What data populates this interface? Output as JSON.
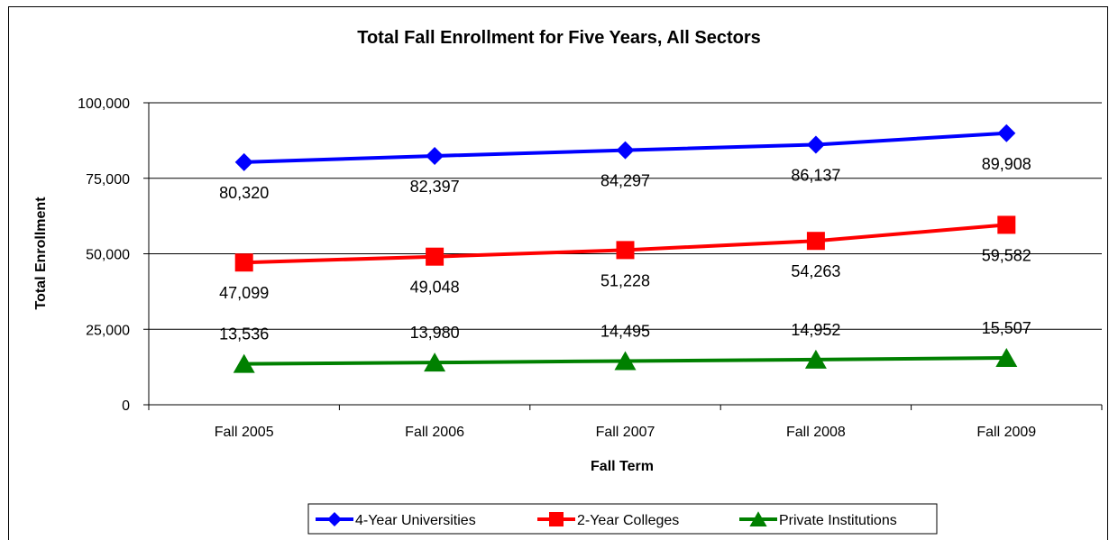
{
  "chart_data": {
    "type": "line",
    "title": "Total Fall Enrollment for Five Years, All Sectors",
    "xlabel": "Fall Term",
    "ylabel": "Total Enrollment",
    "categories": [
      "Fall 2005",
      "Fall 2006",
      "Fall 2007",
      "Fall 2008",
      "Fall 2009"
    ],
    "ylim": [
      0,
      100000
    ],
    "yticks": [
      0,
      25000,
      50000,
      75000,
      100000
    ],
    "ytick_labels": [
      "0",
      "25,000",
      "50,000",
      "75,000",
      "100,000"
    ],
    "grid": true,
    "legend_position": "bottom",
    "series": [
      {
        "name": "4-Year Universities",
        "values": [
          80320,
          82397,
          84297,
          86137,
          89908
        ],
        "labels": [
          "80,320",
          "82,397",
          "84,297",
          "86,137",
          "89,908"
        ],
        "color": "#0000FF",
        "marker": "diamond",
        "label_position": "below"
      },
      {
        "name": "2-Year Colleges",
        "values": [
          47099,
          49048,
          51228,
          54263,
          59582
        ],
        "labels": [
          "47,099",
          "49,048",
          "51,228",
          "54,263",
          "59,582"
        ],
        "color": "#FF0000",
        "marker": "square",
        "label_position": "below"
      },
      {
        "name": "Private Institutions",
        "values": [
          13536,
          13980,
          14495,
          14952,
          15507
        ],
        "labels": [
          "13,536",
          "13,980",
          "14,495",
          "14,952",
          "15,507"
        ],
        "color": "#008000",
        "marker": "triangle",
        "label_position": "above"
      }
    ]
  }
}
